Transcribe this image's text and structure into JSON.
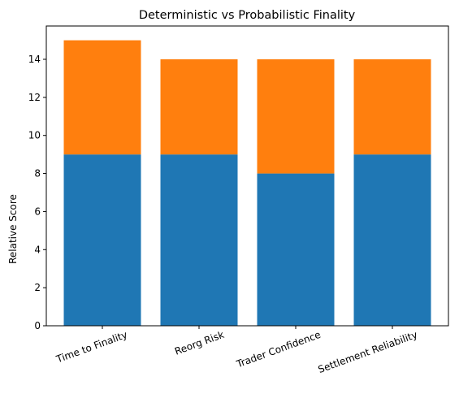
{
  "chart_data": {
    "type": "bar",
    "stacked": true,
    "title": "Deterministic vs Probabilistic Finality",
    "xlabel": "",
    "ylabel": "Relative Score",
    "categories": [
      "Time to Finality",
      "Reorg Risk",
      "Trader Confidence",
      "Settlement Reliability"
    ],
    "series": [
      {
        "values": [
          9,
          9,
          8,
          9
        ],
        "color": "#1f77b4"
      },
      {
        "values": [
          6,
          5,
          6,
          5
        ],
        "color": "#ff7f0e"
      }
    ],
    "ylim": [
      0,
      15.75
    ],
    "yticks": [
      "0",
      "2",
      "4",
      "6",
      "8",
      "10",
      "12",
      "14"
    ],
    "grid": false,
    "legend": "none"
  }
}
